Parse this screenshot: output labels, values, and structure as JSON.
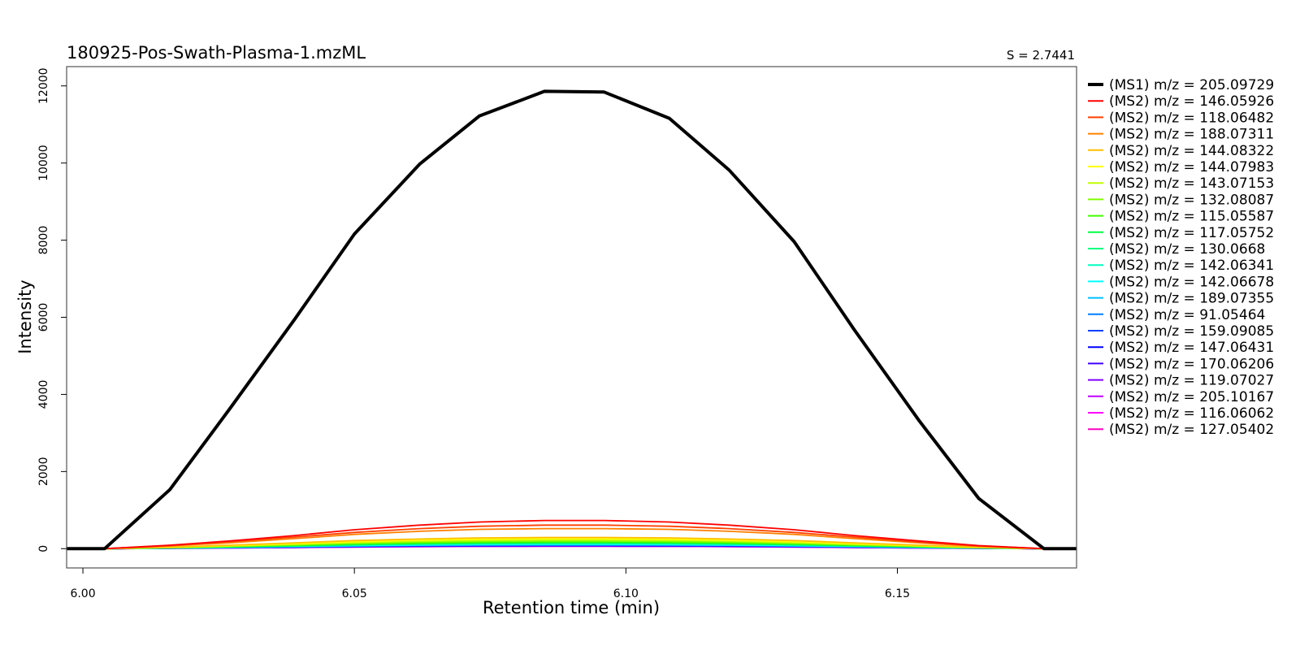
{
  "chart_data": {
    "type": "line",
    "title": "180925-Pos-Swath-Plasma-1.mzML",
    "subtitle": "S = 2.7441",
    "xlabel": "Retention time (min)",
    "ylabel": "Intensity",
    "xlim": [
      5.997,
      6.183
    ],
    "ylim": [
      -500,
      12500
    ],
    "xticks": [
      "6.00",
      "6.05",
      "6.10",
      "6.15"
    ],
    "yticks": [
      "0",
      "2000",
      "4000",
      "6000",
      "8000",
      "10000",
      "12000"
    ],
    "grid": false,
    "legend_position": "right",
    "x": [
      6.004,
      6.016,
      6.027,
      6.039,
      6.05,
      6.062,
      6.073,
      6.085,
      6.096,
      6.108,
      6.119,
      6.131,
      6.142,
      6.154,
      6.165,
      6.177
    ],
    "series": [
      {
        "name": "(MS1) m/z = 205.09729",
        "color": "#000000",
        "level": "MS1",
        "values": [
          0,
          1530,
          3620,
          5950,
          8160,
          9970,
          11220,
          11860,
          11840,
          11160,
          9820,
          7960,
          5690,
          3320,
          1300,
          0
        ]
      },
      {
        "name": "(MS2) m/z = 146.05926",
        "color": "#FF0000",
        "level": "MS2",
        "values": [
          0,
          90,
          200,
          340,
          490,
          610,
          690,
          730,
          730,
          690,
          610,
          490,
          340,
          200,
          80,
          0
        ]
      },
      {
        "name": "(MS2) m/z = 118.06482",
        "color": "#FF4000",
        "level": "MS2",
        "values": [
          0,
          80,
          180,
          300,
          420,
          520,
          580,
          610,
          610,
          580,
          520,
          420,
          300,
          170,
          70,
          0
        ]
      },
      {
        "name": "(MS2) m/z = 188.07311",
        "color": "#FF8000",
        "level": "MS2",
        "values": [
          0,
          70,
          150,
          260,
          370,
          450,
          500,
          520,
          520,
          500,
          450,
          370,
          260,
          150,
          60,
          0
        ]
      },
      {
        "name": "(MS2) m/z = 144.08322",
        "color": "#FFBF00",
        "level": "MS2",
        "values": [
          0,
          40,
          90,
          150,
          210,
          250,
          280,
          290,
          290,
          280,
          250,
          210,
          150,
          90,
          40,
          0
        ]
      },
      {
        "name": "(MS2) m/z = 144.07983",
        "color": "#FFFF00",
        "level": "MS2",
        "values": [
          0,
          35,
          80,
          130,
          180,
          220,
          245,
          255,
          255,
          245,
          220,
          180,
          130,
          80,
          35,
          0
        ]
      },
      {
        "name": "(MS2) m/z = 143.07153",
        "color": "#BFFF00",
        "level": "MS2",
        "values": [
          0,
          30,
          70,
          115,
          160,
          195,
          215,
          225,
          225,
          215,
          195,
          160,
          115,
          70,
          30,
          0
        ]
      },
      {
        "name": "(MS2) m/z = 132.08087",
        "color": "#80FF00",
        "level": "MS2",
        "values": [
          0,
          28,
          62,
          100,
          140,
          172,
          190,
          200,
          200,
          190,
          172,
          140,
          100,
          62,
          28,
          0
        ]
      },
      {
        "name": "(MS2) m/z = 115.05587",
        "color": "#40FF00",
        "level": "MS2",
        "values": [
          0,
          25,
          55,
          90,
          125,
          152,
          168,
          176,
          176,
          168,
          152,
          125,
          90,
          55,
          25,
          0
        ]
      },
      {
        "name": "(MS2) m/z = 117.05752",
        "color": "#00FF40",
        "level": "MS2",
        "values": [
          0,
          22,
          50,
          80,
          112,
          136,
          150,
          158,
          158,
          150,
          136,
          112,
          80,
          50,
          22,
          0
        ]
      },
      {
        "name": "(MS2) m/z = 130.0668",
        "color": "#00FF80",
        "level": "MS2",
        "values": [
          0,
          20,
          45,
          72,
          100,
          122,
          135,
          142,
          142,
          135,
          122,
          100,
          72,
          45,
          20,
          0
        ]
      },
      {
        "name": "(MS2) m/z = 142.06341",
        "color": "#00FFBF",
        "level": "MS2",
        "values": [
          0,
          18,
          40,
          65,
          90,
          110,
          122,
          128,
          128,
          122,
          110,
          90,
          65,
          40,
          18,
          0
        ]
      },
      {
        "name": "(MS2) m/z = 142.06678",
        "color": "#00FFFF",
        "level": "MS2",
        "values": [
          0,
          16,
          36,
          58,
          80,
          98,
          108,
          114,
          114,
          108,
          98,
          80,
          58,
          36,
          16,
          0
        ]
      },
      {
        "name": "(MS2) m/z = 189.07355",
        "color": "#00BFFF",
        "level": "MS2",
        "values": [
          0,
          15,
          33,
          53,
          74,
          90,
          99,
          104,
          104,
          99,
          90,
          74,
          53,
          33,
          15,
          0
        ]
      },
      {
        "name": "(MS2) m/z = 91.05464",
        "color": "#0080FF",
        "level": "MS2",
        "values": [
          0,
          14,
          30,
          48,
          67,
          82,
          90,
          95,
          95,
          90,
          82,
          67,
          48,
          30,
          14,
          0
        ]
      },
      {
        "name": "(MS2) m/z = 159.09085",
        "color": "#0040FF",
        "level": "MS2",
        "values": [
          0,
          13,
          28,
          45,
          62,
          76,
          84,
          88,
          88,
          84,
          76,
          62,
          45,
          28,
          13,
          0
        ]
      },
      {
        "name": "(MS2) m/z = 147.06431",
        "color": "#0000FF",
        "level": "MS2",
        "values": [
          0,
          12,
          26,
          42,
          58,
          71,
          78,
          82,
          82,
          78,
          71,
          58,
          42,
          26,
          12,
          0
        ]
      },
      {
        "name": "(MS2) m/z = 170.06206",
        "color": "#4000FF",
        "level": "MS2",
        "values": [
          0,
          11,
          24,
          39,
          54,
          66,
          73,
          77,
          77,
          73,
          66,
          54,
          39,
          24,
          11,
          0
        ]
      },
      {
        "name": "(MS2) m/z = 119.07027",
        "color": "#8000FF",
        "level": "MS2",
        "values": [
          0,
          10,
          22,
          36,
          50,
          62,
          68,
          72,
          72,
          68,
          62,
          50,
          36,
          22,
          10,
          0
        ]
      },
      {
        "name": "(MS2) m/z = 205.10167",
        "color": "#BF00FF",
        "level": "MS2",
        "values": [
          0,
          10,
          21,
          34,
          48,
          58,
          64,
          68,
          68,
          64,
          58,
          48,
          34,
          21,
          10,
          0
        ]
      },
      {
        "name": "(MS2) m/z = 116.06062",
        "color": "#FF00FF",
        "level": "MS2",
        "values": [
          0,
          9,
          20,
          32,
          45,
          55,
          61,
          64,
          64,
          61,
          55,
          45,
          32,
          20,
          9,
          0
        ]
      },
      {
        "name": "(MS2) m/z = 127.05402",
        "color": "#FF00BF",
        "level": "MS2",
        "values": [
          0,
          9,
          19,
          30,
          42,
          52,
          58,
          60,
          60,
          58,
          52,
          42,
          30,
          19,
          9,
          0
        ]
      }
    ]
  }
}
